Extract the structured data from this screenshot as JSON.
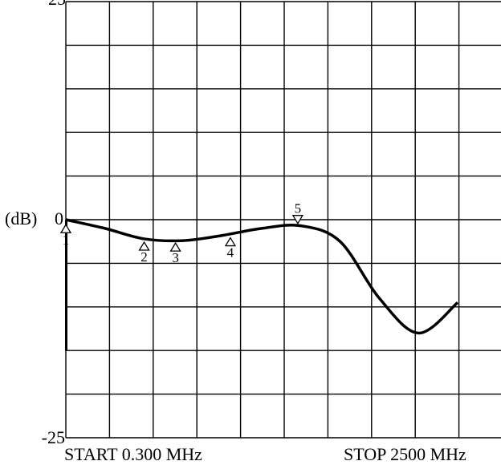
{
  "chart_data": {
    "type": "line",
    "yunit": "(dB)",
    "ylim": [
      -25,
      25
    ],
    "y_ticks": [
      "25",
      "0",
      "-25"
    ],
    "x_labels": {
      "start": "START 0.300 MHz",
      "stop": "STOP 2500 MHz"
    },
    "grid": true,
    "grid_divisions": {
      "x": 10,
      "y": 10
    },
    "series": [
      {
        "x": [
          0.3,
          250,
          500,
          750,
          1000,
          1250,
          1500,
          1750,
          2000,
          2250,
          2500
        ],
        "y": [
          0.0,
          -1.0,
          -2.2,
          -2.4,
          -1.8,
          -1.0,
          -0.7,
          -2.5,
          -9.0,
          -13.0,
          -9.5
        ]
      }
    ],
    "markers": [
      {
        "label": "1",
        "x": 0.3,
        "y": -0.3,
        "direction": "up"
      },
      {
        "label": "2",
        "x": 500,
        "y": -2.3,
        "direction": "up"
      },
      {
        "label": "3",
        "x": 700,
        "y": -2.4,
        "direction": "up"
      },
      {
        "label": "4",
        "x": 1050,
        "y": -1.8,
        "direction": "up"
      },
      {
        "label": "5",
        "x": 1480,
        "y": -0.8,
        "direction": "down"
      }
    ]
  }
}
